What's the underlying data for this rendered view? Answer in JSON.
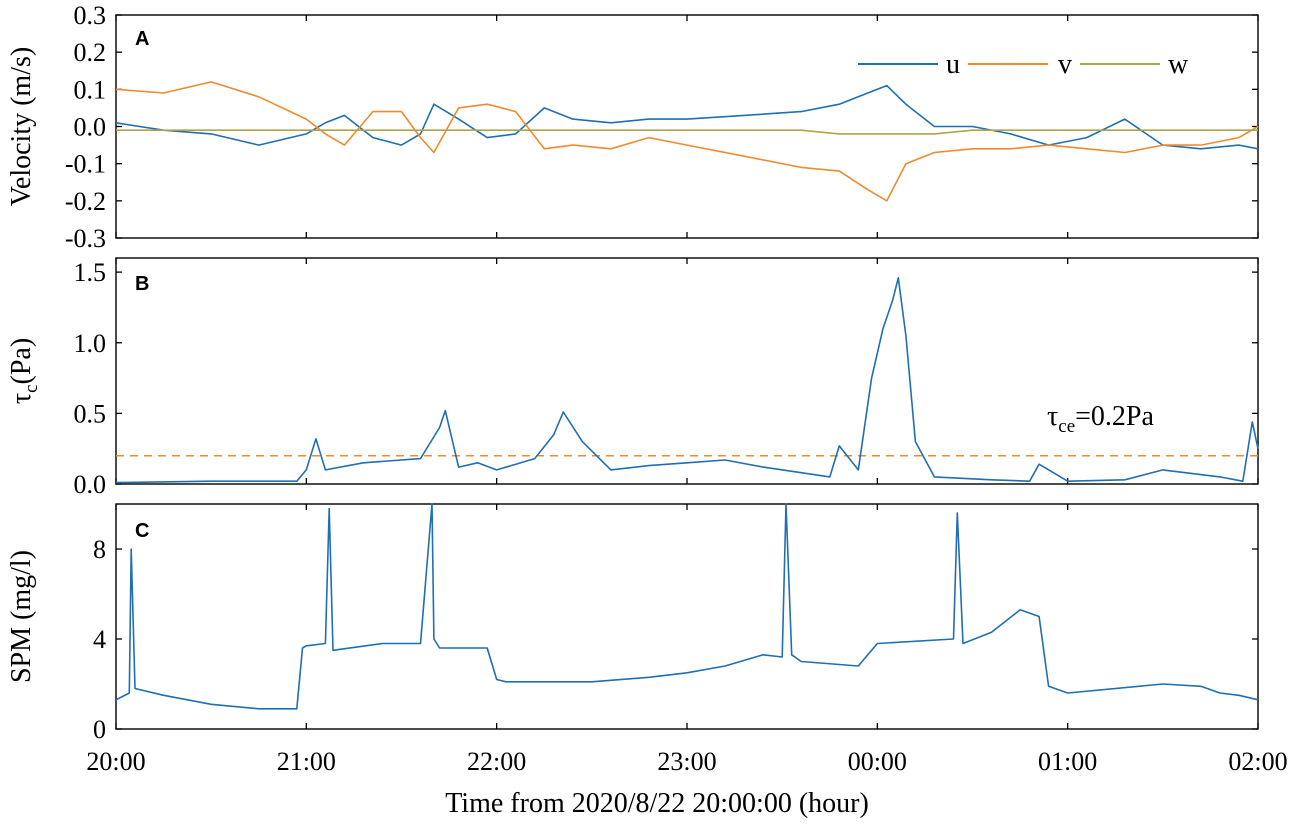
{
  "figure": {
    "xlabel": "Time from 2020/8/22 20:00:00 (hour)",
    "x_ticks": [
      "20:00",
      "21:00",
      "22:00",
      "23:00",
      "00:00",
      "01:00",
      "02:00"
    ],
    "x_range_hours": [
      0,
      6
    ]
  },
  "colors": {
    "u": "#1f6fb2",
    "v": "#f08a2e",
    "w": "#b0a44a",
    "tau": "#1f6fb2",
    "threshold": "#f08a2e",
    "spm": "#1f6fb2"
  },
  "chart_data": [
    {
      "panel": "A",
      "type": "line",
      "ylabel": "Velocity (m/s)",
      "ylim": [
        -0.3,
        0.3
      ],
      "y_ticks": [
        "-0.3",
        "-0.2",
        "-0.1",
        "0.0",
        "0.1",
        "0.2",
        "0.3"
      ],
      "y_tick_values": [
        -0.3,
        -0.2,
        -0.1,
        0.0,
        0.1,
        0.2,
        0.3
      ],
      "legend": [
        "u",
        "v",
        "w"
      ],
      "legend_position": "top-right",
      "x": [
        0,
        0.25,
        0.5,
        0.75,
        1.0,
        1.1,
        1.2,
        1.35,
        1.5,
        1.6,
        1.67,
        1.8,
        1.95,
        2.1,
        2.25,
        2.4,
        2.6,
        2.8,
        3.0,
        3.3,
        3.6,
        3.8,
        3.95,
        4.05,
        4.15,
        4.3,
        4.5,
        4.7,
        4.9,
        5.1,
        5.3,
        5.5,
        5.7,
        5.9,
        6.0
      ],
      "series": [
        {
          "name": "u",
          "values": [
            0.01,
            -0.01,
            -0.02,
            -0.05,
            -0.02,
            0.01,
            0.03,
            -0.03,
            -0.05,
            -0.02,
            0.06,
            0.02,
            -0.03,
            -0.02,
            0.05,
            0.02,
            0.01,
            0.02,
            0.02,
            0.03,
            0.04,
            0.06,
            0.09,
            0.11,
            0.06,
            0.0,
            0.0,
            -0.02,
            -0.05,
            -0.03,
            0.02,
            -0.05,
            -0.06,
            -0.05,
            -0.06
          ]
        },
        {
          "name": "v",
          "values": [
            0.1,
            0.09,
            0.12,
            0.08,
            0.02,
            -0.02,
            -0.05,
            0.04,
            0.04,
            -0.03,
            -0.07,
            0.05,
            0.06,
            0.04,
            -0.06,
            -0.05,
            -0.06,
            -0.03,
            -0.05,
            -0.08,
            -0.11,
            -0.12,
            -0.17,
            -0.2,
            -0.1,
            -0.07,
            -0.06,
            -0.06,
            -0.05,
            -0.06,
            -0.07,
            -0.05,
            -0.05,
            -0.03,
            0.0
          ]
        },
        {
          "name": "w",
          "values": [
            -0.01,
            -0.01,
            -0.01,
            -0.01,
            -0.01,
            -0.01,
            -0.01,
            -0.01,
            -0.01,
            -0.01,
            -0.01,
            -0.01,
            -0.01,
            -0.01,
            -0.01,
            -0.01,
            -0.01,
            -0.01,
            -0.01,
            -0.01,
            -0.01,
            -0.02,
            -0.02,
            -0.02,
            -0.02,
            -0.02,
            -0.01,
            -0.01,
            -0.01,
            -0.01,
            -0.01,
            -0.01,
            -0.01,
            -0.01,
            -0.01
          ]
        }
      ]
    },
    {
      "panel": "B",
      "type": "line",
      "ylabel": "τc(Pa)",
      "ylabel_main": "τ",
      "ylabel_sub": "c",
      "ylabel_unit": "(Pa)",
      "ylim": [
        0,
        1.6
      ],
      "y_ticks": [
        "0.0",
        "0.5",
        "1.0",
        "1.5"
      ],
      "y_tick_values": [
        0.0,
        0.5,
        1.0,
        1.5
      ],
      "annotation": "τce=0.2Pa",
      "annotation_main": "τ",
      "annotation_sub": "ce",
      "annotation_rest": "=0.2Pa",
      "threshold": 0.2,
      "x": [
        0,
        0.5,
        0.95,
        1.0,
        1.05,
        1.1,
        1.3,
        1.6,
        1.7,
        1.73,
        1.8,
        1.9,
        2.0,
        2.2,
        2.3,
        2.35,
        2.45,
        2.6,
        2.8,
        3.0,
        3.2,
        3.4,
        3.6,
        3.75,
        3.8,
        3.9,
        3.97,
        4.03,
        4.08,
        4.11,
        4.15,
        4.2,
        4.3,
        4.6,
        4.8,
        4.85,
        5.0,
        5.3,
        5.5,
        5.8,
        5.92,
        5.97,
        6.0
      ],
      "values": [
        0.01,
        0.02,
        0.02,
        0.1,
        0.32,
        0.1,
        0.15,
        0.18,
        0.4,
        0.52,
        0.12,
        0.15,
        0.1,
        0.18,
        0.35,
        0.51,
        0.3,
        0.1,
        0.13,
        0.15,
        0.17,
        0.12,
        0.08,
        0.05,
        0.27,
        0.1,
        0.75,
        1.1,
        1.3,
        1.46,
        1.05,
        0.3,
        0.05,
        0.03,
        0.02,
        0.14,
        0.02,
        0.03,
        0.1,
        0.05,
        0.02,
        0.44,
        0.25
      ]
    },
    {
      "panel": "C",
      "type": "line",
      "ylabel": "SPM (mg/l)",
      "ylim": [
        0,
        10
      ],
      "y_ticks": [
        "0",
        "4",
        "8"
      ],
      "y_tick_values": [
        0,
        4,
        8
      ],
      "x": [
        0,
        0.07,
        0.08,
        0.1,
        0.25,
        0.5,
        0.75,
        0.95,
        0.98,
        1.0,
        1.1,
        1.12,
        1.14,
        1.4,
        1.6,
        1.66,
        1.67,
        1.7,
        1.95,
        2.0,
        2.05,
        2.5,
        2.8,
        3.0,
        3.2,
        3.4,
        3.5,
        3.52,
        3.55,
        3.6,
        3.9,
        4.0,
        4.4,
        4.42,
        4.45,
        4.6,
        4.75,
        4.85,
        4.9,
        5.0,
        5.5,
        5.7,
        5.8,
        5.9,
        6.0
      ],
      "values": [
        1.3,
        1.6,
        8.0,
        1.8,
        1.5,
        1.1,
        0.9,
        0.9,
        3.6,
        3.7,
        3.8,
        9.8,
        3.5,
        3.8,
        3.8,
        10.0,
        4.0,
        3.6,
        3.6,
        2.2,
        2.1,
        2.1,
        2.3,
        2.5,
        2.8,
        3.3,
        3.2,
        10.0,
        3.3,
        3.0,
        2.8,
        3.8,
        4.0,
        9.6,
        3.8,
        4.3,
        5.3,
        5.0,
        1.9,
        1.6,
        2.0,
        1.9,
        1.6,
        1.5,
        1.3
      ]
    }
  ]
}
